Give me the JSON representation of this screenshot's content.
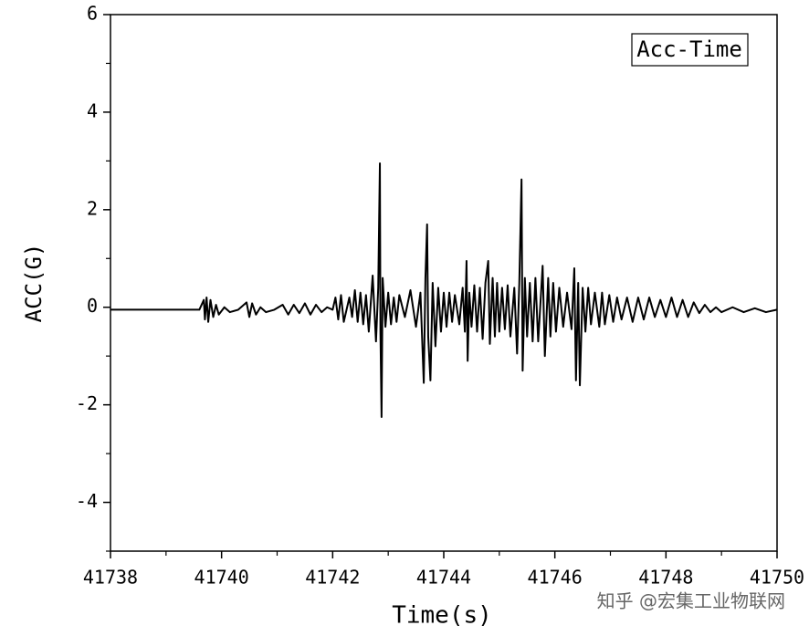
{
  "chart_data": {
    "type": "line",
    "xlabel": "Time(s)",
    "ylabel": "ACC(G)",
    "xlim": [
      41738,
      41750
    ],
    "xticks": [
      41738,
      41740,
      41742,
      41744,
      41746,
      41748,
      41750
    ],
    "xminor_ticks": [
      41739,
      41741,
      41743,
      41745,
      41747,
      41749
    ],
    "ylim": [
      -5,
      6
    ],
    "yticks": [
      -4,
      -2,
      0,
      2,
      4,
      6
    ],
    "yminor_ticks": [
      -5,
      -3,
      -1,
      1,
      3,
      5
    ],
    "legend": "upper right",
    "watermark": "知乎 @宏集工业物联网",
    "series": [
      {
        "name": "Acc-Time",
        "color": "#000000",
        "x": [
          41738,
          41739.6,
          41739.68,
          41739.7,
          41739.73,
          41739.76,
          41739.8,
          41739.85,
          41739.9,
          41739.95,
          41740.05,
          41740.15,
          41740.3,
          41740.45,
          41740.5,
          41740.55,
          41740.62,
          41740.7,
          41740.8,
          41740.95,
          41741.1,
          41741.2,
          41741.3,
          41741.4,
          41741.5,
          41741.6,
          41741.7,
          41741.8,
          41741.9,
          41742.0,
          41742.05,
          41742.1,
          41742.15,
          41742.2,
          41742.3,
          41742.35,
          41742.4,
          41742.45,
          41742.5,
          41742.55,
          41742.6,
          41742.65,
          41742.72,
          41742.78,
          41742.82,
          41742.85,
          41742.86,
          41742.88,
          41742.9,
          41742.95,
          41743.0,
          41743.05,
          41743.1,
          41743.15,
          41743.2,
          41743.3,
          41743.4,
          41743.5,
          41743.58,
          41743.64,
          41743.67,
          41743.7,
          41743.72,
          41743.76,
          41743.8,
          41743.85,
          41743.9,
          41743.95,
          41744.0,
          41744.05,
          41744.1,
          41744.15,
          41744.2,
          41744.28,
          41744.34,
          41744.38,
          41744.41,
          41744.43,
          41744.46,
          41744.5,
          41744.55,
          41744.6,
          41744.65,
          41744.7,
          41744.75,
          41744.8,
          41744.83,
          41744.88,
          41744.92,
          41744.96,
          41745.0,
          41745.05,
          41745.1,
          41745.15,
          41745.2,
          41745.27,
          41745.32,
          41745.36,
          41745.4,
          41745.42,
          41745.46,
          41745.5,
          41745.55,
          41745.6,
          41745.65,
          41745.7,
          41745.78,
          41745.82,
          41745.88,
          41745.92,
          41745.97,
          41746.02,
          41746.08,
          41746.15,
          41746.22,
          41746.3,
          41746.35,
          41746.38,
          41746.42,
          41746.45,
          41746.5,
          41746.55,
          41746.6,
          41746.65,
          41746.72,
          41746.8,
          41746.85,
          41746.9,
          41746.98,
          41747.05,
          41747.12,
          41747.2,
          41747.3,
          41747.4,
          41747.5,
          41747.6,
          41747.7,
          41747.8,
          41747.9,
          41748.0,
          41748.1,
          41748.2,
          41748.3,
          41748.4,
          41748.5,
          41748.6,
          41748.7,
          41748.8,
          41748.9,
          41749.0,
          41749.2,
          41749.4,
          41749.6,
          41749.8,
          41750
        ],
        "values": [
          -0.05,
          -0.05,
          0.15,
          -0.25,
          0.2,
          -0.3,
          0.15,
          -0.2,
          0.05,
          -0.15,
          0.0,
          -0.1,
          -0.05,
          0.1,
          -0.2,
          0.08,
          -0.15,
          0.0,
          -0.1,
          -0.05,
          0.05,
          -0.15,
          0.05,
          -0.12,
          0.08,
          -0.15,
          0.05,
          -0.1,
          0.0,
          -0.05,
          0.2,
          -0.25,
          0.25,
          -0.3,
          0.2,
          -0.2,
          0.35,
          -0.3,
          0.3,
          -0.35,
          0.25,
          -0.5,
          0.65,
          -0.7,
          0.4,
          2.95,
          -0.5,
          -2.25,
          0.6,
          -0.4,
          0.3,
          -0.35,
          0.2,
          -0.3,
          0.25,
          -0.2,
          0.35,
          -0.4,
          0.3,
          -1.55,
          0.6,
          1.7,
          -0.6,
          -1.5,
          0.5,
          -0.8,
          0.4,
          -0.5,
          0.3,
          -0.4,
          0.3,
          -0.3,
          0.25,
          -0.35,
          0.4,
          -0.5,
          0.95,
          -1.1,
          0.3,
          -0.4,
          0.45,
          -0.5,
          0.4,
          -0.65,
          0.5,
          0.95,
          -0.75,
          0.6,
          -0.6,
          0.5,
          -0.5,
          0.4,
          -0.45,
          0.45,
          -0.6,
          0.4,
          -0.95,
          0.5,
          2.62,
          -1.3,
          0.6,
          -0.6,
          0.5,
          -0.7,
          0.6,
          -0.7,
          0.85,
          -1.0,
          0.6,
          -0.6,
          0.5,
          -0.5,
          0.4,
          -0.4,
          0.3,
          -0.45,
          0.8,
          -1.5,
          0.5,
          -1.6,
          0.4,
          -0.5,
          0.4,
          -0.35,
          0.3,
          -0.4,
          0.3,
          -0.35,
          0.25,
          -0.3,
          0.2,
          -0.25,
          0.2,
          -0.3,
          0.2,
          -0.25,
          0.2,
          -0.2,
          0.15,
          -0.2,
          0.2,
          -0.2,
          0.15,
          -0.2,
          0.1,
          -0.12,
          0.05,
          -0.1,
          0.0,
          -0.1,
          0.0,
          -0.1,
          -0.02,
          -0.1,
          -0.05
        ]
      }
    ]
  }
}
